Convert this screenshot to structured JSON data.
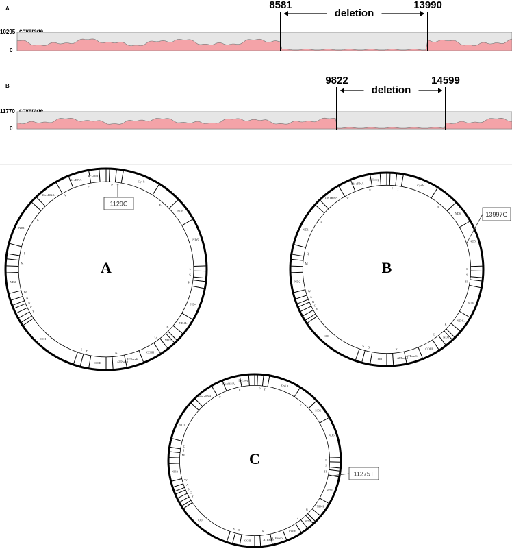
{
  "coverage_panels": [
    {
      "label": "A",
      "max": "10295",
      "min": "0",
      "track_label": "coverage",
      "start": "8581",
      "end": "13990",
      "region_label": "deletion"
    },
    {
      "label": "B",
      "max": "11770",
      "min": "0",
      "track_label": "coverage",
      "start": "9822",
      "end": "14599",
      "region_label": "deletion"
    }
  ],
  "maps": [
    {
      "label": "A",
      "variant": "1129C"
    },
    {
      "label": "B",
      "variant": "13997G"
    },
    {
      "label": "C",
      "variant": "11275T"
    }
  ],
  "genes": [
    "D-Loop",
    "P",
    "T",
    "Cyt b",
    "E",
    "ND6",
    "ND5",
    "L",
    "S",
    "H",
    "ND4",
    "ND4L",
    "R",
    "ND3",
    "G",
    "COIII",
    "ATPase6",
    "ATPase8",
    "K",
    "COII",
    "D",
    "S",
    "COI",
    "Y",
    "C",
    "N",
    "A",
    "W",
    "ND2",
    "M",
    "I",
    "Q",
    "ND1",
    "L",
    "16s rRNA",
    "V",
    "12s rRNA",
    "F"
  ]
}
